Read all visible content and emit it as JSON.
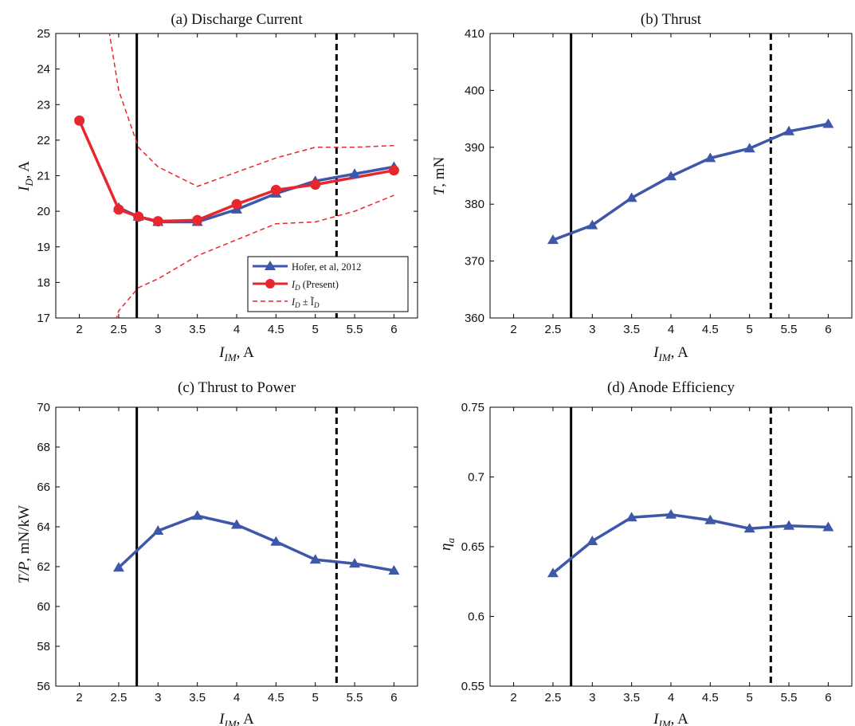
{
  "figure": {
    "colors": {
      "hofer": "#3f57a8",
      "present": "#e8262d",
      "bound": "#e8262d",
      "axis": "#000000"
    }
  },
  "chart_data": [
    {
      "type": "line",
      "title": "(a) Discharge Current",
      "xlabel": "I_IM, A",
      "ylabel": "I_D, A",
      "xlim": [
        1.7,
        6.3
      ],
      "ylim": [
        17,
        25
      ],
      "xticks": [
        "2",
        "2.5",
        "3",
        "3.5",
        "4",
        "4.5",
        "5",
        "5.5",
        "6"
      ],
      "yticks": [
        "17",
        "18",
        "19",
        "20",
        "21",
        "22",
        "23",
        "24",
        "25"
      ],
      "vlines": [
        {
          "x": 2.73,
          "style": "solid"
        },
        {
          "x": 5.27,
          "style": "dashed"
        }
      ],
      "series": [
        {
          "name": "Hofer, et al, 2012",
          "x": [
            2.5,
            2.75,
            3,
            3.5,
            4,
            4.5,
            5,
            5.5,
            6
          ],
          "values": [
            20.1,
            19.85,
            19.7,
            19.7,
            20.05,
            20.5,
            20.85,
            21.05,
            21.25
          ],
          "marker": "triangle"
        },
        {
          "name": "I_D (Present)",
          "x": [
            2,
            2.5,
            2.75,
            3,
            3.5,
            4,
            4.5,
            5,
            6
          ],
          "values": [
            22.55,
            20.05,
            19.85,
            19.72,
            19.75,
            20.2,
            20.6,
            20.75,
            21.15
          ],
          "marker": "circle"
        },
        {
          "name": "I_D ± Ĩ_D",
          "x": [
            2.5,
            2.75,
            3,
            3.5,
            4,
            4.5,
            5,
            5.5,
            6
          ],
          "values": [
            23.4,
            21.8,
            21.25,
            20.7,
            21.1,
            21.5,
            21.8,
            21.8,
            21.85
          ],
          "style": "dashed"
        },
        {
          "name": "",
          "x": [
            2.5,
            2.75,
            3,
            3.5,
            4,
            4.5,
            5,
            5.5,
            6
          ],
          "values": [
            17.2,
            17.85,
            18.1,
            18.75,
            19.2,
            19.65,
            19.7,
            20.0,
            20.45
          ],
          "style": "dashed"
        }
      ],
      "legend": {
        "position": "bottom-right",
        "entries": [
          {
            "main": "Hofer, et al, 2012",
            "sub": ""
          },
          {
            "main": "I",
            "sub": "D",
            "rest": " (Present)"
          },
          {
            "main": "I",
            "sub": "D",
            "rest": " ± Ĩ",
            "sub2": "D"
          }
        ]
      }
    },
    {
      "type": "line",
      "title": "(b) Thrust",
      "xlabel": "I_IM, A",
      "ylabel": "T, mN",
      "xlim": [
        1.7,
        6.3
      ],
      "ylim": [
        360,
        410
      ],
      "xticks": [
        "2",
        "2.5",
        "3",
        "3.5",
        "4",
        "4.5",
        "5",
        "5.5",
        "6"
      ],
      "yticks": [
        "360",
        "370",
        "380",
        "390",
        "400",
        "410"
      ],
      "vlines": [
        {
          "x": 2.73,
          "style": "solid"
        },
        {
          "x": 5.27,
          "style": "dashed"
        }
      ],
      "series": [
        {
          "name": "Hofer, et al, 2012",
          "x": [
            2.5,
            3,
            3.5,
            4,
            4.5,
            5,
            5.5,
            6
          ],
          "values": [
            373.7,
            376.3,
            381.1,
            384.9,
            388.1,
            389.8,
            392.8,
            394.1
          ],
          "marker": "triangle"
        }
      ]
    },
    {
      "type": "line",
      "title": "(c) Thrust to Power",
      "xlabel": "I_IM, A",
      "ylabel": "T/P, mN/kW",
      "xlim": [
        1.7,
        6.3
      ],
      "ylim": [
        56,
        70
      ],
      "xticks": [
        "2",
        "2.5",
        "3",
        "3.5",
        "4",
        "4.5",
        "5",
        "5.5",
        "6"
      ],
      "yticks": [
        "56",
        "58",
        "60",
        "62",
        "64",
        "66",
        "68",
        "70"
      ],
      "vlines": [
        {
          "x": 2.73,
          "style": "solid"
        },
        {
          "x": 5.27,
          "style": "dashed"
        }
      ],
      "series": [
        {
          "name": "Hofer, et al, 2012",
          "x": [
            2.5,
            3,
            3.5,
            4,
            4.5,
            5,
            5.5,
            6
          ],
          "values": [
            61.95,
            63.8,
            64.55,
            64.1,
            63.25,
            62.35,
            62.15,
            61.8
          ],
          "marker": "triangle"
        }
      ]
    },
    {
      "type": "line",
      "title": "(d) Anode Efficiency",
      "xlabel": "I_IM, A",
      "ylabel": "η_a",
      "xlim": [
        1.7,
        6.3
      ],
      "ylim": [
        0.55,
        0.75
      ],
      "xticks": [
        "2",
        "2.5",
        "3",
        "3.5",
        "4",
        "4.5",
        "5",
        "5.5",
        "6"
      ],
      "yticks": [
        "0.55",
        "0.6",
        "0.65",
        "0.7",
        "0.75"
      ],
      "vlines": [
        {
          "x": 2.73,
          "style": "solid"
        },
        {
          "x": 5.27,
          "style": "dashed"
        }
      ],
      "series": [
        {
          "name": "Hofer, et al, 2012",
          "x": [
            2.5,
            3,
            3.5,
            4,
            4.5,
            5,
            5.5,
            6
          ],
          "values": [
            0.631,
            0.654,
            0.671,
            0.673,
            0.669,
            0.663,
            0.665,
            0.664
          ],
          "marker": "triangle"
        }
      ]
    }
  ]
}
